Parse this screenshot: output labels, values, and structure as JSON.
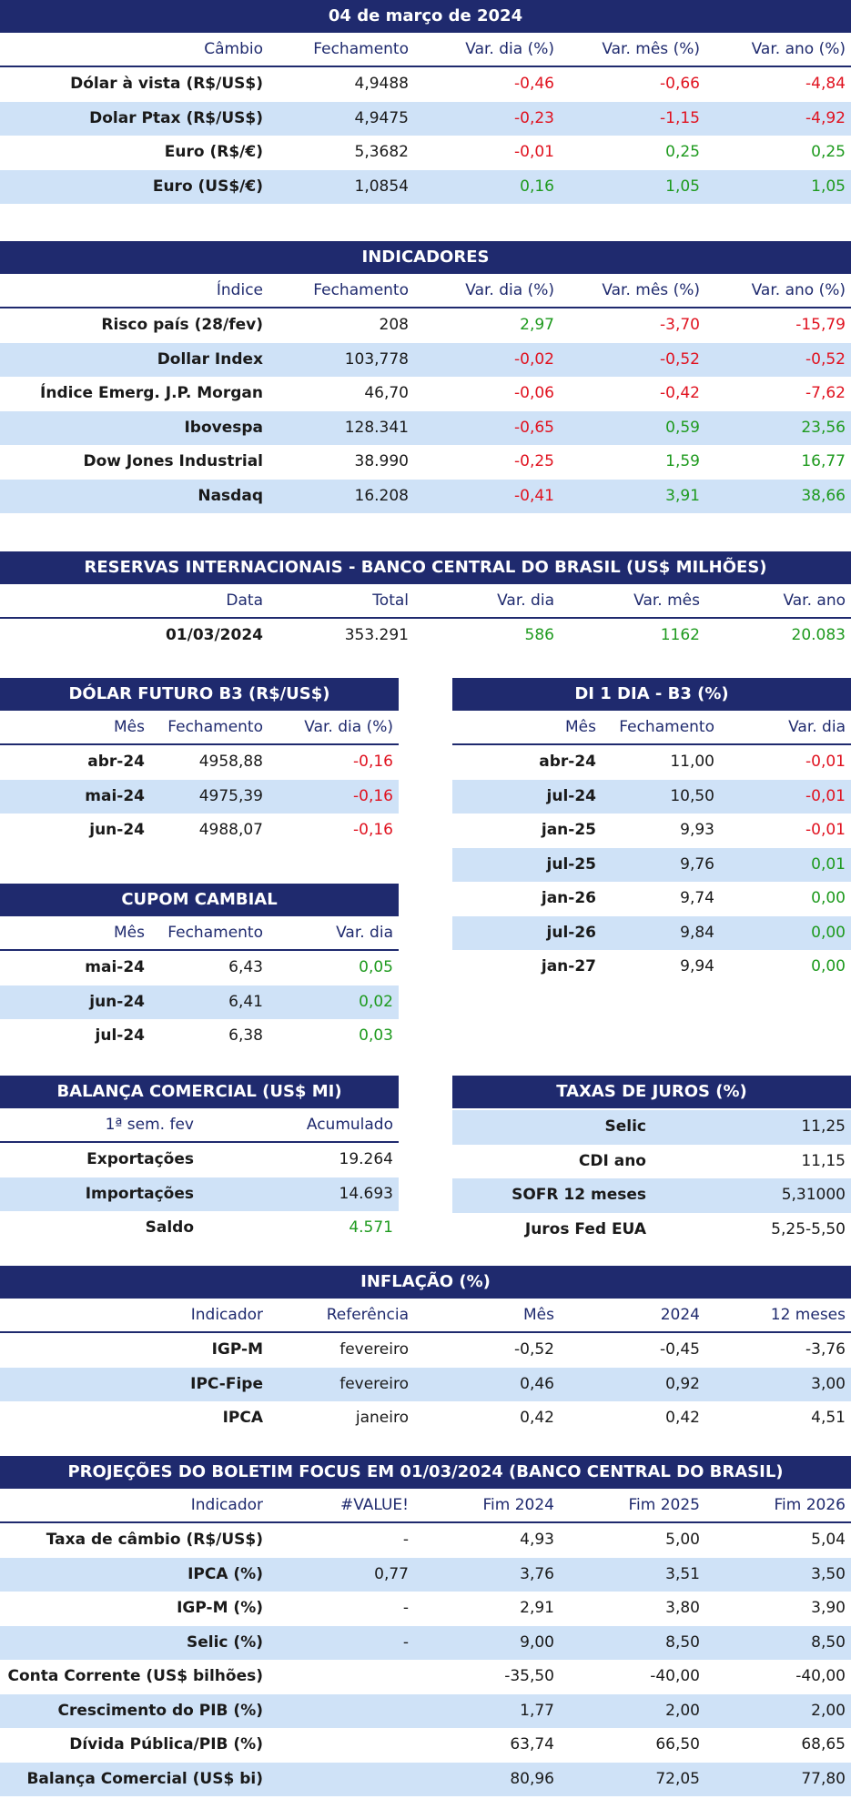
{
  "cambio": {
    "title": "04 de março de 2024",
    "headers": [
      "Câmbio",
      "Fechamento",
      "Var. dia (%)",
      "Var. mês (%)",
      "Var. ano (%)"
    ],
    "rows": [
      [
        "Dólar à vista (R$/US$)",
        "4,9488",
        "-0,46",
        "-0,66",
        "-4,84"
      ],
      [
        "Dolar Ptax (R$/US$)",
        "4,9475",
        "-0,23",
        "-1,15",
        "-4,92"
      ],
      [
        "Euro (R$/€)",
        "5,3682",
        "-0,01",
        "0,25",
        "0,25"
      ],
      [
        "Euro (US$/€)",
        "1,0854",
        "0,16",
        "1,05",
        "1,05"
      ]
    ]
  },
  "indicadores": {
    "title": "INDICADORES",
    "headers": [
      "Índice",
      "Fechamento",
      "Var. dia (%)",
      "Var. mês (%)",
      "Var. ano (%)"
    ],
    "rows": [
      [
        "Risco país (28/fev)",
        "208",
        "2,97",
        "-3,70",
        "-15,79"
      ],
      [
        "Dollar Index",
        "103,778",
        "-0,02",
        "-0,52",
        "-0,52"
      ],
      [
        "Índice Emerg. J.P. Morgan",
        "46,70",
        "-0,06",
        "-0,42",
        "-7,62"
      ],
      [
        "Ibovespa",
        "128.341",
        "-0,65",
        "0,59",
        "23,56"
      ],
      [
        "Dow Jones Industrial",
        "38.990",
        "-0,25",
        "1,59",
        "16,77"
      ],
      [
        "Nasdaq",
        "16.208",
        "-0,41",
        "3,91",
        "38,66"
      ]
    ]
  },
  "reservas": {
    "title": "RESERVAS INTERNACIONAIS - BANCO CENTRAL DO BRASIL (US$ MILHÕES)",
    "headers": [
      "Data",
      "Total",
      "Var. dia",
      "Var. mês",
      "Var. ano"
    ],
    "rows": [
      [
        "01/03/2024",
        "353.291",
        "586",
        "1162",
        "20.083"
      ]
    ]
  },
  "dolar_futuro": {
    "title": "DÓLAR FUTURO B3 (R$/US$)",
    "headers": [
      "Mês",
      "Fechamento",
      "Var. dia (%)"
    ],
    "rows": [
      [
        "abr-24",
        "4958,88",
        "-0,16"
      ],
      [
        "mai-24",
        "4975,39",
        "-0,16"
      ],
      [
        "jun-24",
        "4988,07",
        "-0,16"
      ]
    ]
  },
  "di1": {
    "title": "DI 1 DIA - B3 (%)",
    "headers": [
      "Mês",
      "Fechamento",
      "Var. dia"
    ],
    "rows": [
      [
        "abr-24",
        "11,00",
        "-0,01"
      ],
      [
        "jul-24",
        "10,50",
        "-0,01"
      ],
      [
        "jan-25",
        "9,93",
        "-0,01"
      ],
      [
        "jul-25",
        "9,76",
        "0,01"
      ],
      [
        "jan-26",
        "9,74",
        "0,00"
      ],
      [
        "jul-26",
        "9,84",
        "0,00"
      ],
      [
        "jan-27",
        "9,94",
        "0,00"
      ]
    ]
  },
  "cupom": {
    "title": "CUPOM CAMBIAL",
    "headers": [
      "Mês",
      "Fechamento",
      "Var. dia"
    ],
    "rows": [
      [
        "mai-24",
        "6,43",
        "0,05"
      ],
      [
        "jun-24",
        "6,41",
        "0,02"
      ],
      [
        "jul-24",
        "6,38",
        "0,03"
      ]
    ]
  },
  "balanca": {
    "title": "BALANÇA COMERCIAL (US$ MI)",
    "headers": [
      "1ª sem. fev",
      "Acumulado"
    ],
    "rows": [
      [
        "Exportações",
        "19.264"
      ],
      [
        "Importações",
        "14.693"
      ],
      [
        "Saldo",
        "4.571"
      ]
    ]
  },
  "juros": {
    "title": "TAXAS DE JUROS (%)",
    "rows": [
      [
        "Selic",
        "11,25"
      ],
      [
        "CDI ano",
        "11,15"
      ],
      [
        "SOFR 12 meses",
        "5,31000"
      ],
      [
        "Juros Fed EUA",
        "5,25-5,50"
      ]
    ]
  },
  "inflacao": {
    "title": "INFLAÇÃO (%)",
    "headers": [
      "Indicador",
      "Referência",
      "Mês",
      "2024",
      "12 meses"
    ],
    "rows": [
      [
        "IGP-M",
        "fevereiro",
        "-0,52",
        "-0,45",
        "-3,76"
      ],
      [
        "IPC-Fipe",
        "fevereiro",
        "0,46",
        "0,92",
        "3,00"
      ],
      [
        "IPCA",
        "janeiro",
        "0,42",
        "0,42",
        "4,51"
      ]
    ]
  },
  "focus": {
    "title": "PROJEÇÕES DO BOLETIM FOCUS EM 01/03/2024 (BANCO CENTRAL DO BRASIL)",
    "headers": [
      "Indicador",
      "#VALUE!",
      "Fim 2024",
      "Fim 2025",
      "Fim 2026"
    ],
    "rows": [
      [
        "Taxa de câmbio (R$/US$)",
        "-",
        "4,93",
        "5,00",
        "5,04"
      ],
      [
        "IPCA (%)",
        "0,77",
        "3,76",
        "3,51",
        "3,50"
      ],
      [
        "IGP-M (%)",
        "-",
        "2,91",
        "3,80",
        "3,90"
      ],
      [
        "Selic (%)",
        "-",
        "9,00",
        "8,50",
        "8,50"
      ],
      [
        "Conta Corrente (US$ bilhões)",
        "",
        "-35,50",
        "-40,00",
        "-40,00"
      ],
      [
        "Crescimento do PIB (%)",
        "",
        "1,77",
        "2,00",
        "2,00"
      ],
      [
        "Dívida Pública/PIB (%)",
        "",
        "63,74",
        "66,50",
        "68,65"
      ],
      [
        "Balança Comercial (US$ bi)",
        "",
        "80,96",
        "72,05",
        "77,80"
      ]
    ]
  },
  "colors": {
    "header_bg": "#1f2a6e",
    "stripe": "#cfe2f7",
    "negative": "#e0121f",
    "positive": "#1e9a1e"
  }
}
